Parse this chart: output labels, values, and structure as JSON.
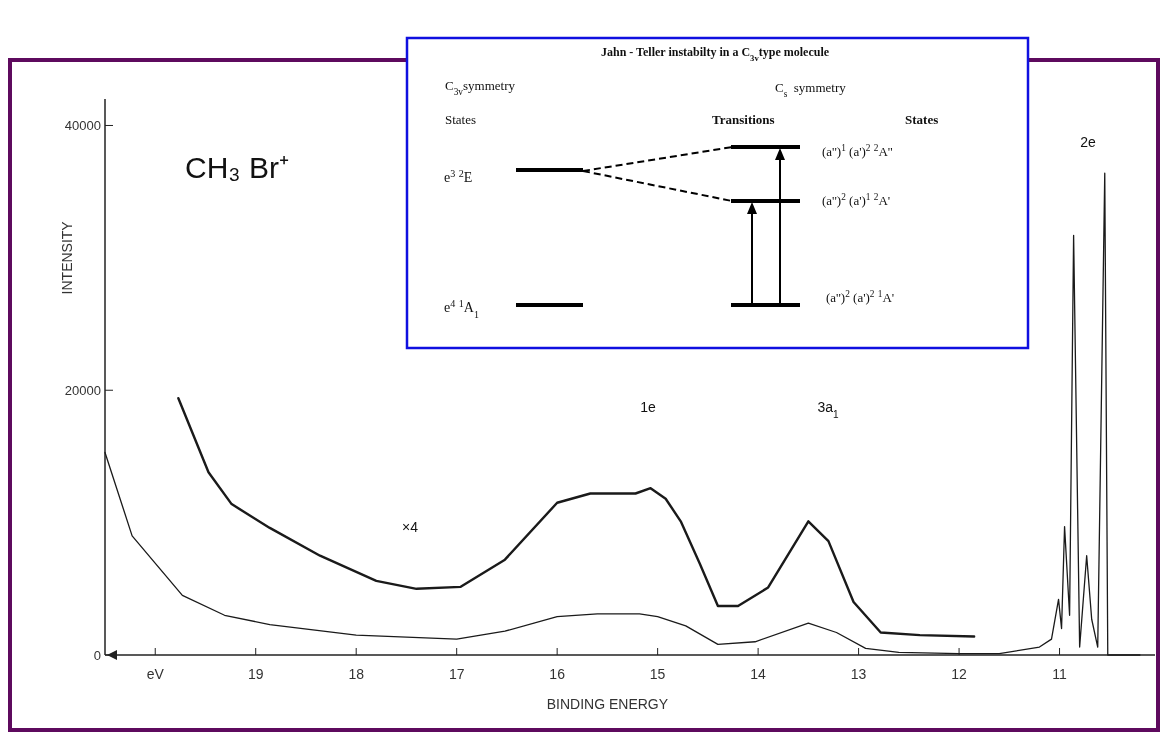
{
  "chart_data": {
    "type": "line",
    "xlabel": "BINDING ENERGY",
    "ylabel": "INTENSITY",
    "xlim": [
      20.5,
      10.05
    ],
    "ylim": [
      0,
      42000
    ],
    "xticks": [
      {
        "value": 20,
        "label": "eV"
      },
      19,
      18,
      17,
      16,
      15,
      14,
      13,
      12,
      11
    ],
    "yticks": [
      0,
      20000,
      40000
    ],
    "series": [
      {
        "color": "#1a1a1a",
        "x": [
          19.77,
          19.47,
          19.24,
          18.86,
          18.36,
          17.8,
          17.4,
          16.96,
          16.52,
          16.0,
          15.67,
          15.22,
          15.07,
          14.92,
          14.77,
          14.58,
          14.4,
          14.2,
          13.9,
          13.5,
          13.3,
          13.05,
          12.78,
          12.39,
          11.85
        ],
        "values": [
          19400,
          13800,
          11400,
          9600,
          7500,
          5600,
          5000,
          5150,
          7200,
          11500,
          12200,
          12200,
          12600,
          11800,
          10100,
          6900,
          3700,
          3700,
          5100,
          10100,
          8600,
          4000,
          1700,
          1500,
          1400
        ]
      },
      {
        "color": "#1a1a1a",
        "x": [
          20.5,
          20.23,
          19.73,
          19.31,
          18.86,
          18.0,
          17.0,
          16.52,
          16.0,
          15.6,
          15.18,
          15.0,
          14.72,
          14.4,
          14.03,
          13.5,
          13.22,
          12.93,
          12.6,
          12.0,
          11.6,
          11.2,
          11.08,
          11.01,
          10.98,
          10.95,
          10.9,
          10.86,
          10.8,
          10.73,
          10.68,
          10.62,
          10.55,
          10.52,
          10.4,
          10.2
        ],
        "values": [
          15300,
          9000,
          4500,
          3000,
          2300,
          1500,
          1200,
          1800,
          2900,
          3100,
          3100,
          2900,
          2200,
          800,
          1000,
          2400,
          1700,
          500,
          200,
          100,
          100,
          600,
          1200,
          4200,
          2000,
          9700,
          3000,
          31700,
          600,
          7500,
          2700,
          600,
          36400,
          0,
          0,
          0
        ]
      }
    ],
    "annotations": [
      "CH₃ Br⁺",
      "Jahn - Teller instabilty in a C$_{3v}$type molecule",
      "C$_{3v}$symmetry",
      "States",
      "C$_{s}$  symmetry",
      "Transitions",
      "States",
      "e$^{3}$ $^{2}$E",
      "e$^{4}$ $^{1}$A$_{1}$",
      "(a'')$^{1}$ (a')$^{2}$ $^{2}$A''",
      "(a'')$^{2}$ (a')$^{1}$ $^{2}$A'",
      "(a'')$^{2}$ (a')$^{2}$ $^{1}$A'",
      "1e",
      "3a$_{1}$",
      "2e",
      "×4"
    ]
  }
}
